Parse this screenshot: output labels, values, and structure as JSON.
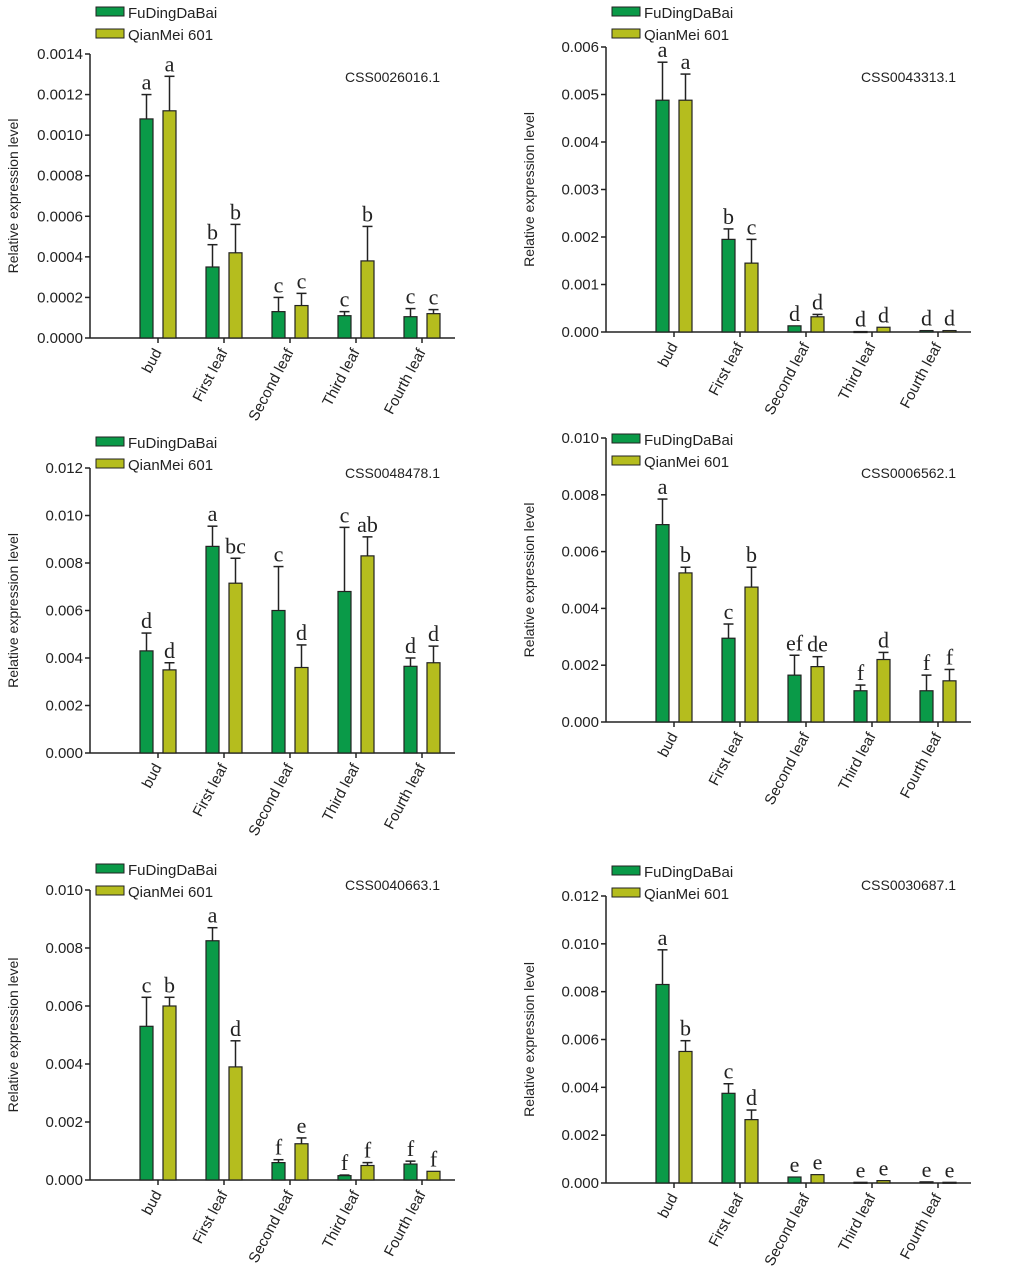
{
  "colors": {
    "FuDingDaBai": "#0a9a48",
    "QianMei 601": "#b5bd1e"
  },
  "chart_data": [
    {
      "type": "bar",
      "title": "CSS0026016.1",
      "ylabel": "Relative expression level",
      "legend": [
        "FuDingDaBai",
        "QianMei 601"
      ],
      "legend_position": "top-left",
      "categories": [
        "bud",
        "First leaf",
        "Second leaf",
        "Third leaf",
        "Fourth leaf"
      ],
      "ylim": [
        0,
        0.0014
      ],
      "yticks": [
        "0.0000",
        "0.0002",
        "0.0004",
        "0.0006",
        "0.0008",
        "0.0010",
        "0.0012",
        "0.0014"
      ],
      "ytick_values": [
        0,
        0.0002,
        0.0004,
        0.0006,
        0.0008,
        0.001,
        0.0012,
        0.0014
      ],
      "series": [
        {
          "name": "FuDingDaBai",
          "values": [
            0.00108,
            0.00035,
            0.00013,
            0.00011,
            0.000105
          ],
          "errors": [
            0.00012,
            0.00011,
            7e-05,
            2e-05,
            4e-05
          ],
          "letters": [
            "a",
            "b",
            "c",
            "c",
            "c"
          ]
        },
        {
          "name": "QianMei 601",
          "values": [
            0.00112,
            0.00042,
            0.00016,
            0.00038,
            0.00012
          ],
          "errors": [
            0.00017,
            0.00014,
            6e-05,
            0.00017,
            2e-05
          ],
          "letters": [
            "a",
            "b",
            "c",
            "b",
            "c"
          ]
        }
      ]
    },
    {
      "type": "bar",
      "title": "CSS0043313.1",
      "ylabel": "Relative expression level",
      "legend": [
        "FuDingDaBai",
        "QianMei 601"
      ],
      "legend_position": "top-left",
      "categories": [
        "bud",
        "First leaf",
        "Second leaf",
        "Third leaf",
        "Fourth leaf"
      ],
      "ylim": [
        0,
        0.006
      ],
      "yticks": [
        "0.000",
        "0.001",
        "0.002",
        "0.003",
        "0.004",
        "0.005",
        "0.006"
      ],
      "ytick_values": [
        0,
        0.001,
        0.002,
        0.003,
        0.004,
        0.005,
        0.006
      ],
      "series": [
        {
          "name": "FuDingDaBai",
          "values": [
            0.00488,
            0.00195,
            0.00013,
            1e-05,
            3e-05
          ],
          "errors": [
            0.0008,
            0.00022,
            0,
            0,
            0
          ],
          "letters": [
            "a",
            "b",
            "d",
            "d",
            "d"
          ]
        },
        {
          "name": "QianMei 601",
          "values": [
            0.00488,
            0.00145,
            0.00032,
            0.0001,
            3e-05
          ],
          "errors": [
            0.00055,
            0.0005,
            5e-05,
            0,
            0
          ],
          "letters": [
            "a",
            "c",
            "d",
            "d",
            "d"
          ]
        }
      ]
    },
    {
      "type": "bar",
      "title": "CSS0048478.1",
      "ylabel": "Relative expression level",
      "legend": [
        "FuDingDaBai",
        "QianMei 601"
      ],
      "legend_position": "top-left",
      "categories": [
        "bud",
        "First leaf",
        "Second leaf",
        "Third leaf",
        "Fourth leaf"
      ],
      "ylim": [
        0,
        0.012
      ],
      "yticks": [
        "0.000",
        "0.002",
        "0.004",
        "0.006",
        "0.008",
        "0.010",
        "0.012"
      ],
      "ytick_values": [
        0,
        0.002,
        0.004,
        0.006,
        0.008,
        0.01,
        0.012
      ],
      "series": [
        {
          "name": "FuDingDaBai",
          "values": [
            0.0043,
            0.0087,
            0.006,
            0.0068,
            0.00365
          ],
          "errors": [
            0.00075,
            0.00085,
            0.00185,
            0.0027,
            0.00035
          ],
          "letters": [
            "d",
            "a",
            "c",
            "c",
            "d"
          ]
        },
        {
          "name": "QianMei 601",
          "values": [
            0.0035,
            0.00715,
            0.0036,
            0.0083,
            0.0038
          ],
          "errors": [
            0.0003,
            0.00105,
            0.00095,
            0.0008,
            0.0007
          ],
          "letters": [
            "d",
            "bc",
            "d",
            "ab",
            "d"
          ]
        }
      ]
    },
    {
      "type": "bar",
      "title": "CSS0006562.1",
      "ylabel": "Relative expression level",
      "legend": [
        "FuDingDaBai",
        "QianMei 601"
      ],
      "legend_position": "top-left",
      "categories": [
        "bud",
        "First leaf",
        "Second leaf",
        "Third leaf",
        "Fourth leaf"
      ],
      "ylim": [
        0,
        0.01
      ],
      "yticks": [
        "0.000",
        "0.002",
        "0.004",
        "0.006",
        "0.008",
        "0.010"
      ],
      "ytick_values": [
        0,
        0.002,
        0.004,
        0.006,
        0.008,
        0.01
      ],
      "series": [
        {
          "name": "FuDingDaBai",
          "values": [
            0.00695,
            0.00295,
            0.00165,
            0.0011,
            0.0011
          ],
          "errors": [
            0.0009,
            0.0005,
            0.0007,
            0.0002,
            0.00055
          ],
          "letters": [
            "a",
            "c",
            "ef",
            "f",
            "f"
          ]
        },
        {
          "name": "QianMei 601",
          "values": [
            0.00525,
            0.00475,
            0.00195,
            0.0022,
            0.00145
          ],
          "errors": [
            0.0002,
            0.0007,
            0.00035,
            0.00025,
            0.0004
          ],
          "letters": [
            "b",
            "b",
            "de",
            "d",
            "f"
          ]
        }
      ]
    },
    {
      "type": "bar",
      "title": "CSS0040663.1",
      "ylabel": "Relative expression level",
      "legend": [
        "FuDingDaBai",
        "QianMei 601"
      ],
      "legend_position": "top-left",
      "categories": [
        "bud",
        "First leaf",
        "Second leaf",
        "Third leaf",
        "Fourth leaf"
      ],
      "ylim": [
        0,
        0.01
      ],
      "yticks": [
        "0.000",
        "0.002",
        "0.004",
        "0.006",
        "0.008",
        "0.010"
      ],
      "ytick_values": [
        0,
        0.002,
        0.004,
        0.006,
        0.008,
        0.01
      ],
      "series": [
        {
          "name": "FuDingDaBai",
          "values": [
            0.0053,
            0.00825,
            0.0006,
            0.00015,
            0.00055
          ],
          "errors": [
            0.001,
            0.00045,
            0.0001,
            2e-05,
            0.0001
          ],
          "letters": [
            "c",
            "a",
            "f",
            "f",
            "f"
          ]
        },
        {
          "name": "QianMei 601",
          "values": [
            0.006,
            0.0039,
            0.00125,
            0.0005,
            0.0003
          ],
          "errors": [
            0.0003,
            0.0009,
            0.0002,
            0.0001,
            0
          ],
          "letters": [
            "b",
            "d",
            "e",
            "f",
            "f"
          ]
        }
      ]
    },
    {
      "type": "bar",
      "title": "CSS0030687.1",
      "ylabel": "Relative expression level",
      "legend": [
        "FuDingDaBai",
        "QianMei 601"
      ],
      "legend_position": "top-left",
      "categories": [
        "bud",
        "First leaf",
        "Second leaf",
        "Third leaf",
        "Fourth leaf"
      ],
      "ylim": [
        0,
        0.012
      ],
      "yticks": [
        "0.000",
        "0.002",
        "0.004",
        "0.006",
        "0.008",
        "0.010",
        "0.012"
      ],
      "ytick_values": [
        0,
        0.002,
        0.004,
        0.006,
        0.008,
        0.01,
        0.012
      ],
      "series": [
        {
          "name": "FuDingDaBai",
          "values": [
            0.0083,
            0.00375,
            0.00025,
            3e-05,
            5e-05
          ],
          "errors": [
            0.00145,
            0.0004,
            0,
            0,
            0
          ],
          "letters": [
            "a",
            "c",
            "e",
            "e",
            "e"
          ]
        },
        {
          "name": "QianMei 601",
          "values": [
            0.0055,
            0.00265,
            0.00035,
            0.0001,
            3e-05
          ],
          "errors": [
            0.00045,
            0.0004,
            0,
            0,
            0
          ],
          "letters": [
            "b",
            "d",
            "e",
            "e",
            "e"
          ]
        }
      ]
    }
  ]
}
